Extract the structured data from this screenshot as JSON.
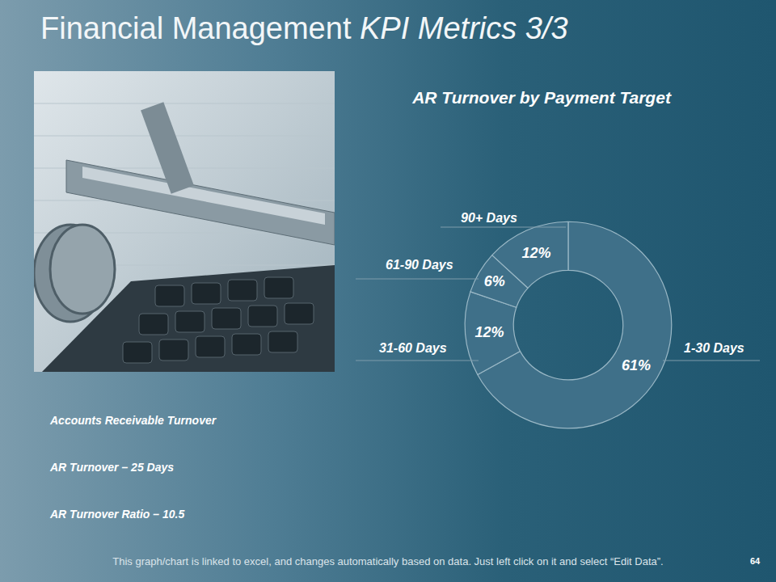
{
  "slide": {
    "title": "Financial Management",
    "title_emphasis": "KPI Metrics 3/3",
    "kpi_heading": "Accounts Receivable Turnover",
    "kpi_items": [
      "AR Turnover – 25 Days",
      "AR Turnover Ratio – 10.5"
    ],
    "footer": "This graph/chart is linked to excel, and changes automatically based on data. Just left click on it and select “Edit Data”.",
    "page_number": 64
  },
  "chart_data": {
    "type": "donut",
    "title": "AR Turnover by Payment Target",
    "categories": [
      "1-30 Days",
      "31-60 Days",
      "61-90 Days",
      "90+ Days"
    ],
    "values": [
      61,
      12,
      6,
      12
    ],
    "value_labels": [
      "61%",
      "12%",
      "6%",
      "12%"
    ],
    "data_labels": true,
    "color": "#3f7089"
  }
}
